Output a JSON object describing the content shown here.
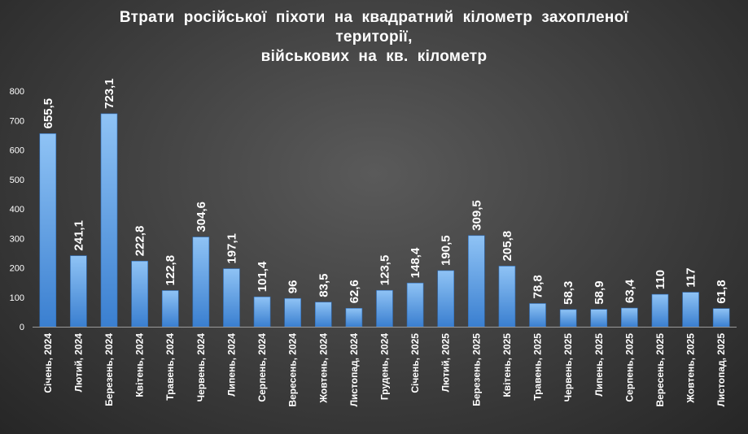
{
  "chart_data": {
    "type": "bar",
    "title_lines": [
      "Втрати  російської  піхоти  на  квадратний  кілометр  захопленої",
      "території,",
      "військових  на  кв.  кілометр"
    ],
    "categories": [
      "Січень, 2024",
      "Лютий, 2024",
      "Березень, 2024",
      "Квітень, 2024",
      "Травень, 2024",
      "Червень, 2024",
      "Липень, 2024",
      "Серпень, 2024",
      "Вересень, 2024",
      "Жовтень, 2024",
      "Листопад, 2024",
      "Грудень, 2024",
      "Січень, 2025",
      "Лютий, 2025",
      "Березень, 2025",
      "Квітень, 2025",
      "Травень, 2025",
      "Червень, 2025",
      "Липень, 2025",
      "Серпень, 2025",
      "Вересень, 2025",
      "Жовтень, 2025",
      "Листопад, 2025"
    ],
    "values": [
      655.5,
      241.1,
      723.1,
      222.8,
      122.8,
      304.6,
      197.1,
      101.4,
      96,
      83.5,
      62.6,
      123.5,
      148.4,
      190.5,
      309.5,
      205.8,
      78.8,
      58.3,
      58.9,
      63.4,
      110,
      117,
      61.8
    ],
    "data_labels": [
      "655,5",
      "241,1",
      "723,1",
      "222,8",
      "122,8",
      "304,6",
      "197,1",
      "101,4",
      "96",
      "83,5",
      "62,6",
      "123,5",
      "148,4",
      "190,5",
      "309,5",
      "205,8",
      "78,8",
      "58,3",
      "58,9",
      "63,4",
      "110",
      "117",
      "61,8"
    ],
    "y_ticks": [
      "0",
      "100",
      "200",
      "300",
      "400",
      "500",
      "600",
      "700",
      "800"
    ],
    "ylim": [
      0,
      800
    ],
    "grid": false,
    "legend": "none",
    "colors": {
      "bar_top": "#8fc3f5",
      "bar_bottom": "#3a7fd0",
      "bar_border": "#2f6db8",
      "text": "#ffffff",
      "axis": "#9a9a9a"
    }
  }
}
